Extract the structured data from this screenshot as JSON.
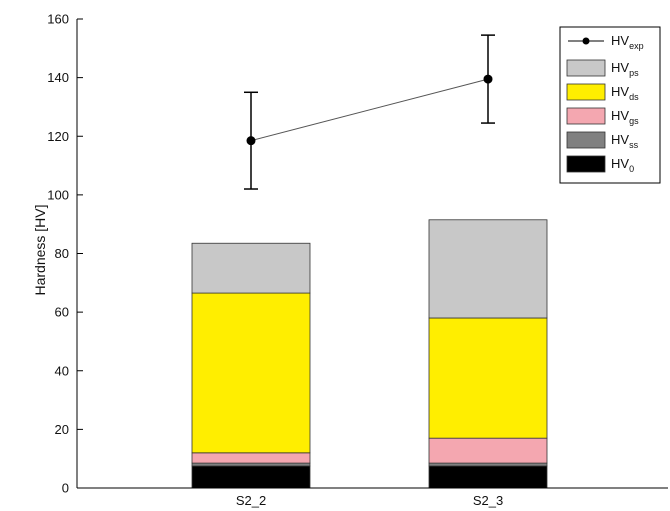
{
  "chart_data": {
    "type": "bar",
    "stacked": true,
    "categories": [
      "S2_2",
      "S2_3"
    ],
    "ylabel": "Hardness [HV]",
    "xlabel": "",
    "ylim": [
      0,
      160
    ],
    "yticks": [
      0,
      20,
      40,
      60,
      80,
      100,
      120,
      140,
      160
    ],
    "grid": false,
    "legend_position": "top-right",
    "series": [
      {
        "name": "HV",
        "sub": "0",
        "color": "#000000",
        "values": [
          7.5,
          7.5
        ]
      },
      {
        "name": "HV",
        "sub": "ss",
        "color": "#808080",
        "values": [
          1.0,
          1.0
        ]
      },
      {
        "name": "HV",
        "sub": "gs",
        "color": "#f4a7b0",
        "values": [
          3.5,
          8.5
        ]
      },
      {
        "name": "HV",
        "sub": "ds",
        "color": "#ffee00",
        "values": [
          54.5,
          41.0
        ]
      },
      {
        "name": "HV",
        "sub": "ps",
        "color": "#c8c8c8",
        "values": [
          17.0,
          33.5
        ]
      }
    ],
    "line_series": {
      "name": "HV",
      "sub": "exp",
      "values": [
        118.5,
        139.5
      ],
      "error_low": [
        102,
        124.5
      ],
      "error_high": [
        135,
        154.5
      ]
    }
  }
}
